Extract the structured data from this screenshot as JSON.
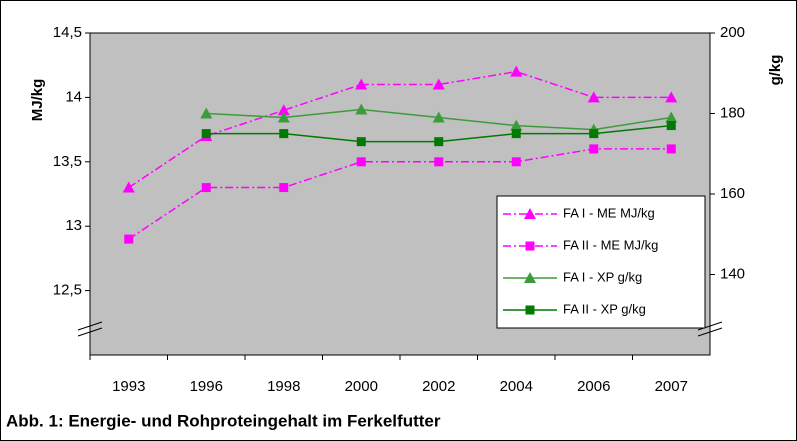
{
  "chart_data": {
    "type": "line",
    "title": "Abb. 1: Energie- und Rohproteingehalt im Ferkelfutter",
    "y_label": "MJ/kg",
    "y2_label": "g/kg",
    "categories": [
      "1993",
      "1996",
      "1998",
      "2000",
      "2002",
      "2004",
      "2006",
      "2007"
    ],
    "ylim": [
      12,
      14.5
    ],
    "yticks": [
      {
        "value": 12.5,
        "label": "12,5"
      },
      13,
      {
        "value": 13.5,
        "label": "13,5"
      },
      14,
      {
        "value": 14.5,
        "label": "14,5"
      }
    ],
    "y2lim": [
      120,
      200
    ],
    "y2ticks": [
      140,
      160,
      180,
      200
    ],
    "series": [
      {
        "name": "FA I - ME MJ/kg",
        "color": "#ff00ff",
        "marker": "triangle",
        "dash": true,
        "values": [
          13.3,
          13.7,
          13.9,
          14.1,
          14.1,
          14.2,
          14.0,
          14.0
        ]
      },
      {
        "name": "FA II - ME MJ/kg",
        "color": "#ff00ff",
        "marker": "square",
        "dash": true,
        "values": [
          12.9,
          13.3,
          13.3,
          13.5,
          13.5,
          13.5,
          13.6,
          13.6
        ]
      },
      {
        "name": "FA I - XP g/kg",
        "color": "#3c9c3c",
        "marker": "triangle",
        "dash": false,
        "axis": "y2",
        "values": [
          null,
          180,
          179,
          181,
          179,
          177,
          176,
          179
        ]
      },
      {
        "name": "FA II - XP g/kg",
        "color": "#007a00",
        "marker": "square",
        "dash": false,
        "axis": "y2",
        "values": [
          null,
          175,
          175,
          173,
          173,
          175,
          175,
          177
        ]
      }
    ]
  }
}
